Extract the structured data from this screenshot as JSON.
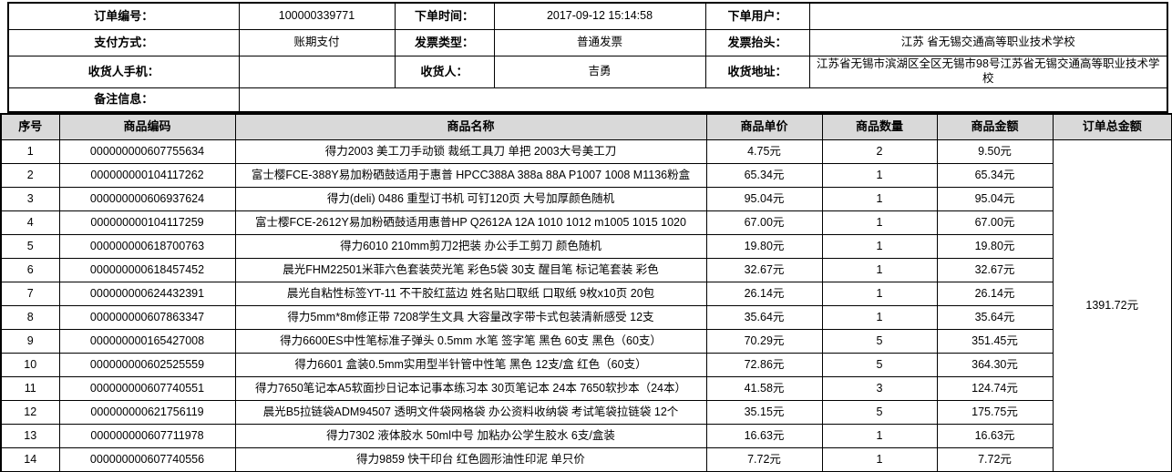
{
  "order_info": {
    "order_no_label": "订单编号：",
    "order_no": "100000339771",
    "order_time_label": "下单时间：",
    "order_time": "2017-09-12 15:14:58",
    "order_user_label": "下单用户：",
    "order_user": "",
    "pay_method_label": "支付方式：",
    "pay_method": "账期支付",
    "invoice_type_label": "发票类型：",
    "invoice_type": "普通发票",
    "invoice_title_label": "发票抬头：",
    "invoice_title": "江苏 省无锡交通高等职业技术学校",
    "receiver_phone_label": "收货人手机：",
    "receiver_phone": "",
    "receiver_label": "收货人：",
    "receiver": "吉勇",
    "address_label": "收货地址：",
    "address": "江苏省无锡市滨湖区全区无锡市98号江苏省无锡交通高等职业技术学校",
    "remark_label": "备注信息：",
    "remark": ""
  },
  "table_headers": {
    "seq": "序号",
    "code": "商品编码",
    "name": "商品名称",
    "price": "商品单价",
    "qty": "商品数量",
    "amount": "商品金额",
    "total": "订单总金额"
  },
  "items": [
    {
      "seq": "1",
      "code": "000000000607755634",
      "name": "得力2003 美工刀手动锁 裁纸工具刀 单把 2003大号美工刀",
      "price": "4.75元",
      "qty": "2",
      "amount": "9.50元"
    },
    {
      "seq": "2",
      "code": "000000000104117262",
      "name": "富士樱FCE-388Y易加粉硒鼓适用于惠普 HPCC388A 388a 88A P1007 1008 M1136粉盒",
      "price": "65.34元",
      "qty": "1",
      "amount": "65.34元"
    },
    {
      "seq": "3",
      "code": "000000000606937624",
      "name": "得力(deli) 0486 重型订书机 可钉120页 大号加厚颜色随机",
      "price": "95.04元",
      "qty": "1",
      "amount": "95.04元"
    },
    {
      "seq": "4",
      "code": "000000000104117259",
      "name": "富士樱FCE-2612Y易加粉硒鼓适用惠普HP Q2612A 12A 1010 1012 m1005 1015 1020",
      "price": "67.00元",
      "qty": "1",
      "amount": "67.00元"
    },
    {
      "seq": "5",
      "code": "000000000618700763",
      "name": "得力6010 210mm剪刀2把装 办公手工剪刀 颜色随机",
      "price": "19.80元",
      "qty": "1",
      "amount": "19.80元"
    },
    {
      "seq": "6",
      "code": "000000000618457452",
      "name": "晨光FHM22501米菲六色套装荧光笔 彩色5袋 30支 醒目笔 标记笔套装 彩色",
      "price": "32.67元",
      "qty": "1",
      "amount": "32.67元"
    },
    {
      "seq": "7",
      "code": "000000000624432391",
      "name": "晨光自粘性标签YT-11 不干胶红蓝边 姓名贴口取纸 口取纸 9枚x10页 20包",
      "price": "26.14元",
      "qty": "1",
      "amount": "26.14元"
    },
    {
      "seq": "8",
      "code": "000000000607863347",
      "name": "得力5mm*8m修正带 7208学生文具 大容量改字带卡式包装清新感受 12支",
      "price": "35.64元",
      "qty": "1",
      "amount": "35.64元"
    },
    {
      "seq": "9",
      "code": "000000000165427008",
      "name": "得力6600ES中性笔标准子弹头 0.5mm 水笔 签字笔 黑色 60支 黑色（60支）",
      "price": "70.29元",
      "qty": "5",
      "amount": "351.45元"
    },
    {
      "seq": "10",
      "code": "000000000602525559",
      "name": "得力6601 盒装0.5mm实用型半针管中性笔 黑色 12支/盒 红色（60支）",
      "price": "72.86元",
      "qty": "5",
      "amount": "364.30元"
    },
    {
      "seq": "11",
      "code": "000000000607740551",
      "name": "得力7650笔记本A5软面抄日记本记事本练习本 30页笔记本 24本 7650软抄本（24本）",
      "price": "41.58元",
      "qty": "3",
      "amount": "124.74元"
    },
    {
      "seq": "12",
      "code": "000000000621756119",
      "name": "晨光B5拉链袋ADM94507 透明文件袋网格袋 办公资料收纳袋 考试笔袋拉链袋 12个",
      "price": "35.15元",
      "qty": "5",
      "amount": "175.75元"
    },
    {
      "seq": "13",
      "code": "000000000607711978",
      "name": "得力7302 液体胶水 50ml中号 加粘办公学生胶水 6支/盒装",
      "price": "16.63元",
      "qty": "1",
      "amount": "16.63元"
    },
    {
      "seq": "14",
      "code": "000000000607740556",
      "name": "得力9859 快干印台 红色圆形油性印泥 单只价",
      "price": "7.72元",
      "qty": "1",
      "amount": "7.72元"
    }
  ],
  "order_total": "1391.72元",
  "colors": {
    "header_bg": "#d9d9d9",
    "border": "#000000",
    "background": "#ffffff"
  }
}
